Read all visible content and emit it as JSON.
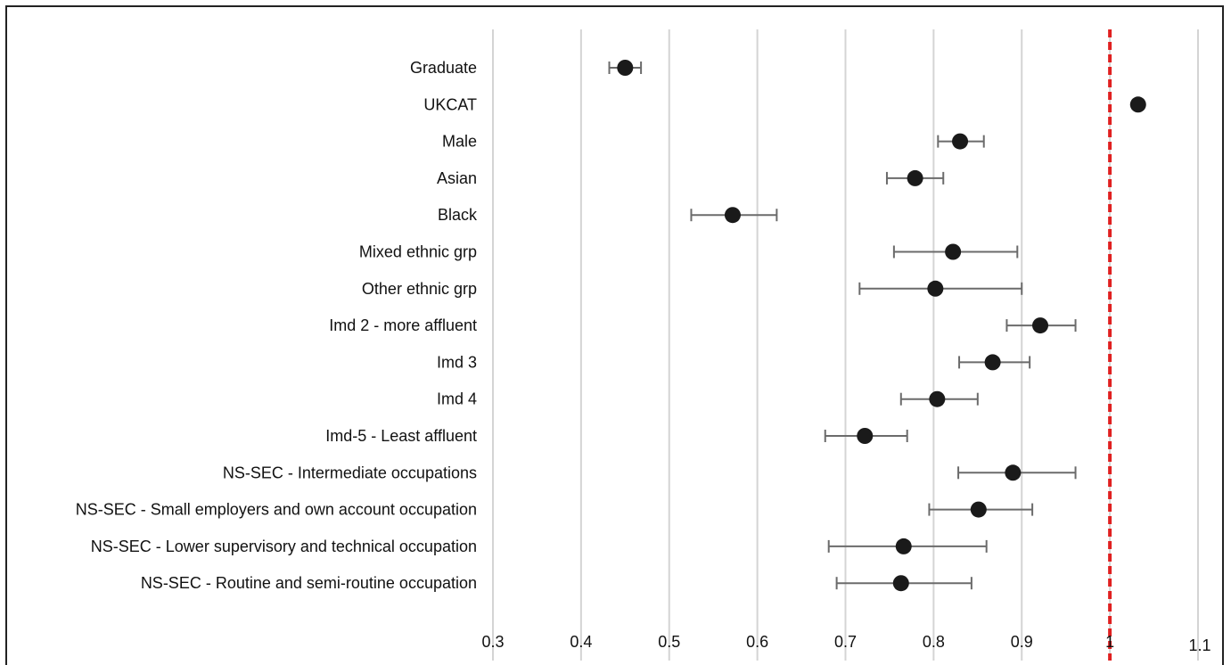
{
  "chart_data": {
    "type": "scatter",
    "title": "",
    "xlabel": "",
    "ylabel": "",
    "xlim": [
      0.3,
      1.1
    ],
    "x_ticks": [
      "0.3",
      "0.4",
      "0.5",
      "0.6",
      "0.7",
      "0.8",
      "0.9",
      "1",
      "1.1"
    ],
    "x_tick_values": [
      0.3,
      0.4,
      0.5,
      0.6,
      0.7,
      0.8,
      0.9,
      1.0,
      1.1
    ],
    "grid": true,
    "reference_line": {
      "x": 1.0,
      "style": "dashed",
      "color": "#e02020"
    },
    "marker_color": "#1a1a1a",
    "errorbar_color": "#6b6b6b",
    "grid_color": "#d4d4d4",
    "categories": [
      "Graduate",
      "UKCAT",
      "Male",
      "Asian",
      "Black",
      "Mixed ethnic grp",
      "Other ethnic grp",
      "Imd 2 - more affluent",
      "Imd 3",
      "Imd 4",
      "Imd-5 - Least affluent",
      "NS-SEC - Intermediate occupations",
      "NS-SEC - Small employers and own account occupation",
      "NS-SEC - Lower supervisory and technical occupation",
      "NS-SEC - Routine and semi-routine occupation"
    ],
    "estimates": [
      0.45,
      1.032,
      0.83,
      0.779,
      0.572,
      0.822,
      0.802,
      0.921,
      0.867,
      0.804,
      0.722,
      0.89,
      0.851,
      0.766,
      0.763
    ],
    "ci_lower": [
      0.432,
      1.028,
      0.805,
      0.747,
      0.525,
      0.755,
      0.716,
      0.883,
      0.829,
      0.763,
      0.677,
      0.828,
      0.795,
      0.681,
      0.69
    ],
    "ci_upper": [
      0.468,
      1.036,
      0.857,
      0.811,
      0.622,
      0.895,
      0.9,
      0.961,
      0.909,
      0.85,
      0.77,
      0.961,
      0.912,
      0.86,
      0.843
    ]
  }
}
